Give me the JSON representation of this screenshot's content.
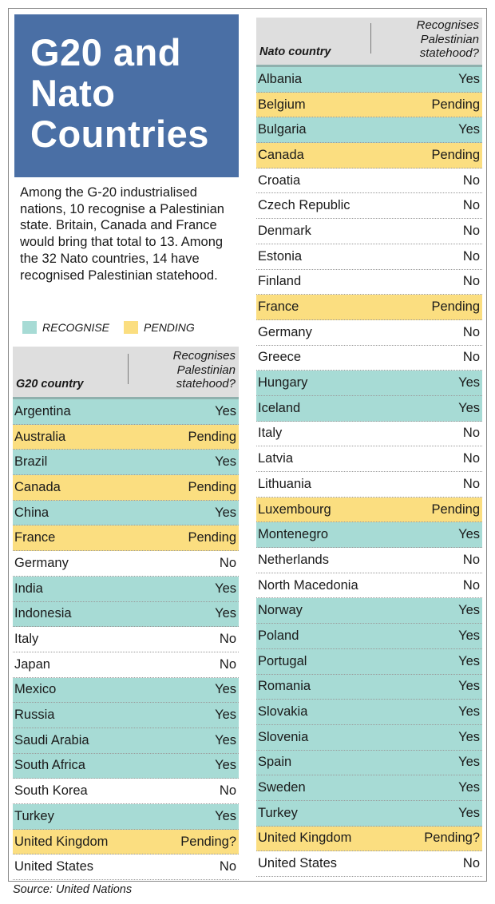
{
  "title_lines": [
    "G20 and",
    "Nato",
    "Countries"
  ],
  "intro": "Among the G-20 industrialised nations, 10 recognise a Palestinian state. Britain, Canada and France would bring that total to 13. Among the 32 Nato countries, 14 have recognised Palestinian statehood.",
  "legend": {
    "recognise": "RECOGNISE",
    "pending": "PENDING"
  },
  "colors": {
    "title_bg": "#4a6fa5",
    "recognise": "#a7dbd5",
    "pending": "#fbde80",
    "header_bg": "#dedede"
  },
  "source": "Source: United Nations",
  "chart_data": [
    {
      "type": "table",
      "columns": [
        "G20 country",
        "Recognises Palestinian statehood?"
      ],
      "rows": [
        {
          "country": "Argentina",
          "status": "Yes",
          "category": "recognise"
        },
        {
          "country": "Australia",
          "status": "Pending",
          "category": "pending"
        },
        {
          "country": "Brazil",
          "status": "Yes",
          "category": "recognise"
        },
        {
          "country": "Canada",
          "status": "Pending",
          "category": "pending"
        },
        {
          "country": "China",
          "status": "Yes",
          "category": "recognise"
        },
        {
          "country": "France",
          "status": "Pending",
          "category": "pending"
        },
        {
          "country": "Germany",
          "status": "No",
          "category": "none"
        },
        {
          "country": "India",
          "status": "Yes",
          "category": "recognise"
        },
        {
          "country": "Indonesia",
          "status": "Yes",
          "category": "recognise"
        },
        {
          "country": "Italy",
          "status": "No",
          "category": "none"
        },
        {
          "country": "Japan",
          "status": "No",
          "category": "none"
        },
        {
          "country": "Mexico",
          "status": "Yes",
          "category": "recognise"
        },
        {
          "country": "Russia",
          "status": "Yes",
          "category": "recognise"
        },
        {
          "country": "Saudi Arabia",
          "status": "Yes",
          "category": "recognise"
        },
        {
          "country": "South Africa",
          "status": "Yes",
          "category": "recognise"
        },
        {
          "country": "South Korea",
          "status": "No",
          "category": "none"
        },
        {
          "country": "Turkey",
          "status": "Yes",
          "category": "recognise"
        },
        {
          "country": "United Kingdom",
          "status": "Pending?",
          "category": "pending"
        },
        {
          "country": "United States",
          "status": "No",
          "category": "none"
        }
      ]
    },
    {
      "type": "table",
      "columns": [
        "Nato country",
        "Recognises Palestinian statehood?"
      ],
      "rows": [
        {
          "country": "Albania",
          "status": "Yes",
          "category": "recognise"
        },
        {
          "country": "Belgium",
          "status": "Pending",
          "category": "pending"
        },
        {
          "country": "Bulgaria",
          "status": "Yes",
          "category": "recognise"
        },
        {
          "country": "Canada",
          "status": "Pending",
          "category": "pending"
        },
        {
          "country": "Croatia",
          "status": "No",
          "category": "none"
        },
        {
          "country": "Czech Republic",
          "status": "No",
          "category": "none"
        },
        {
          "country": "Denmark",
          "status": "No",
          "category": "none"
        },
        {
          "country": "Estonia",
          "status": "No",
          "category": "none"
        },
        {
          "country": "Finland",
          "status": "No",
          "category": "none"
        },
        {
          "country": "France",
          "status": "Pending",
          "category": "pending"
        },
        {
          "country": "Germany",
          "status": "No",
          "category": "none"
        },
        {
          "country": "Greece",
          "status": "No",
          "category": "none"
        },
        {
          "country": "Hungary",
          "status": "Yes",
          "category": "recognise"
        },
        {
          "country": "Iceland",
          "status": "Yes",
          "category": "recognise"
        },
        {
          "country": "Italy",
          "status": "No",
          "category": "none"
        },
        {
          "country": "Latvia",
          "status": "No",
          "category": "none"
        },
        {
          "country": "Lithuania",
          "status": "No",
          "category": "none"
        },
        {
          "country": "Luxembourg",
          "status": "Pending",
          "category": "pending"
        },
        {
          "country": "Montenegro",
          "status": "Yes",
          "category": "recognise"
        },
        {
          "country": "Netherlands",
          "status": "No",
          "category": "none"
        },
        {
          "country": "North Macedonia",
          "status": "No",
          "category": "none"
        },
        {
          "country": "Norway",
          "status": "Yes",
          "category": "recognise"
        },
        {
          "country": "Poland",
          "status": "Yes",
          "category": "recognise"
        },
        {
          "country": "Portugal",
          "status": "Yes",
          "category": "recognise"
        },
        {
          "country": "Romania",
          "status": "Yes",
          "category": "recognise"
        },
        {
          "country": "Slovakia",
          "status": "Yes",
          "category": "recognise"
        },
        {
          "country": "Slovenia",
          "status": "Yes",
          "category": "recognise"
        },
        {
          "country": "Spain",
          "status": "Yes",
          "category": "recognise"
        },
        {
          "country": "Sweden",
          "status": "Yes",
          "category": "recognise"
        },
        {
          "country": "Turkey",
          "status": "Yes",
          "category": "recognise"
        },
        {
          "country": "United Kingdom",
          "status": "Pending?",
          "category": "pending"
        },
        {
          "country": "United States",
          "status": "No",
          "category": "none"
        }
      ]
    }
  ]
}
